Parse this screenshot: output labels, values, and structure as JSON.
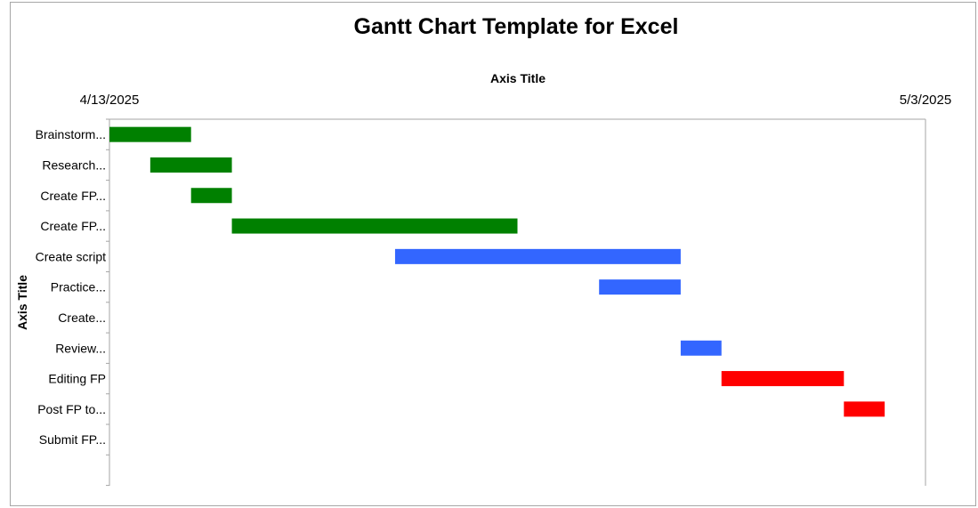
{
  "chart_data": {
    "type": "bar",
    "orientation": "horizontal",
    "title": "Gantt Chart Template for Excel",
    "xlabel": "Axis Title",
    "ylabel": "Axis Title",
    "xlim": [
      "2025-04-13",
      "2025-05-03"
    ],
    "x_tick_labels": [
      "4/13/2025",
      "5/3/2025"
    ],
    "x_axis_position": "top",
    "grid": false,
    "legend": "none",
    "categories": [
      "Brainstorm...",
      "Research...",
      "Create FP...",
      "Create FP...",
      "Create script",
      "Practice...",
      "Create...",
      "Review...",
      "Editing FP",
      "Post FP to...",
      "Submit FP..."
    ],
    "tasks": [
      {
        "start": "2025-04-13",
        "end": "2025-04-15",
        "color": "#008000"
      },
      {
        "start": "2025-04-14",
        "end": "2025-04-16",
        "color": "#008000"
      },
      {
        "start": "2025-04-15",
        "end": "2025-04-16",
        "color": "#008000"
      },
      {
        "start": "2025-04-16",
        "end": "2025-04-23",
        "color": "#008000"
      },
      {
        "start": "2025-04-20",
        "end": "2025-04-27",
        "color": "#3366ff"
      },
      {
        "start": "2025-04-25",
        "end": "2025-04-27",
        "color": "#3366ff"
      },
      {
        "start": null,
        "end": null,
        "color": "#3366ff"
      },
      {
        "start": "2025-04-27",
        "end": "2025-04-28",
        "color": "#3366ff"
      },
      {
        "start": "2025-04-28",
        "end": "2025-05-01",
        "color": "#ff0000"
      },
      {
        "start": "2025-05-01",
        "end": "2025-05-02",
        "color": "#ff0000"
      },
      {
        "start": null,
        "end": null,
        "color": "#ff0000"
      }
    ]
  }
}
